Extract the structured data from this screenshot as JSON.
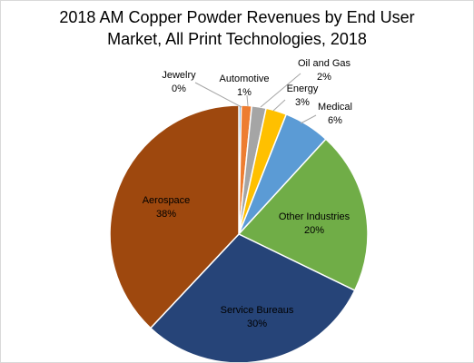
{
  "chart_data": {
    "type": "pie",
    "title_line1": "2018 AM Copper Powder Revenues by End User",
    "title_line2": "Market, All Print Technologies, 2018",
    "slices": [
      {
        "label": "Jewelry",
        "value": 0.3,
        "display": "0%",
        "color": "#5b9bd5"
      },
      {
        "label": "Automotive",
        "value": 1.3,
        "display": "1%",
        "color": "#ed7d31"
      },
      {
        "label": "Oil and Gas",
        "value": 1.8,
        "display": "2%",
        "color": "#a5a5a5"
      },
      {
        "label": "Energy",
        "value": 2.6,
        "display": "3%",
        "color": "#ffc000"
      },
      {
        "label": "Medical",
        "value": 5.8,
        "display": "6%",
        "color": "#5b9bd5"
      },
      {
        "label": "Other Industries",
        "value": 20.4,
        "display": "20%",
        "color": "#70ad47"
      },
      {
        "label": "Service Bureaus",
        "value": 29.8,
        "display": "30%",
        "color": "#264478"
      },
      {
        "label": "Aerospace",
        "value": 38.0,
        "display": "38%",
        "color": "#9e480e"
      }
    ]
  }
}
